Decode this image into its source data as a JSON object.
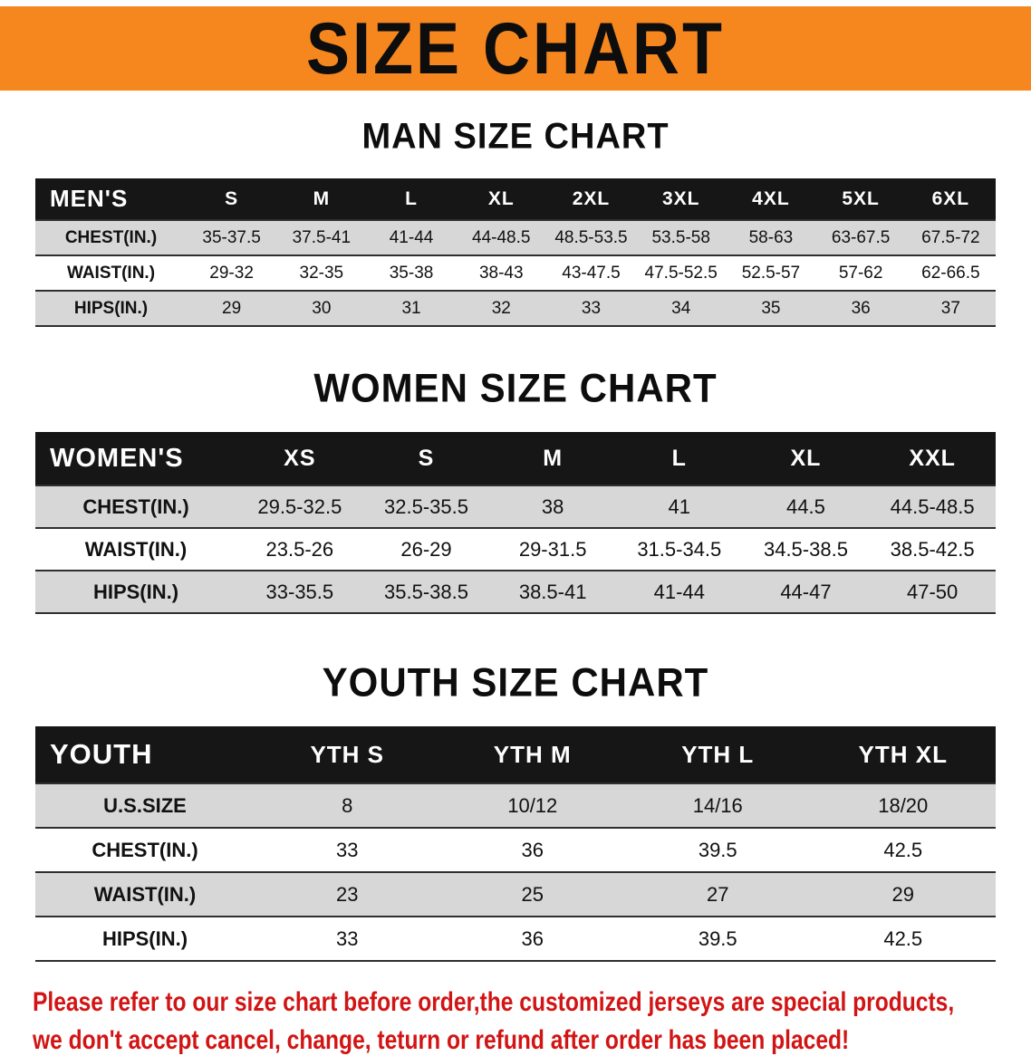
{
  "banner": {
    "title": "SIZE CHART",
    "bg_color": "#f6871f"
  },
  "chart_data": [
    {
      "type": "table",
      "title": "MAN SIZE CHART",
      "columns": [
        "MEN'S",
        "S",
        "M",
        "L",
        "XL",
        "2XL",
        "3XL",
        "4XL",
        "5XL",
        "6XL"
      ],
      "rows": [
        [
          "CHEST(IN.)",
          "35-37.5",
          "37.5-41",
          "41-44",
          "44-48.5",
          "48.5-53.5",
          "53.5-58",
          "58-63",
          "63-67.5",
          "67.5-72"
        ],
        [
          "WAIST(IN.)",
          "29-32",
          "32-35",
          "35-38",
          "38-43",
          "43-47.5",
          "47.5-52.5",
          "52.5-57",
          "57-62",
          "62-66.5"
        ],
        [
          "HIPS(IN.)",
          "29",
          "30",
          "31",
          "32",
          "33",
          "34",
          "35",
          "36",
          "37"
        ]
      ]
    },
    {
      "type": "table",
      "title": "WOMEN SIZE CHART",
      "columns": [
        "WOMEN'S",
        "XS",
        "S",
        "M",
        "L",
        "XL",
        "XXL"
      ],
      "rows": [
        [
          "CHEST(IN.)",
          "29.5-32.5",
          "32.5-35.5",
          "38",
          "41",
          "44.5",
          "44.5-48.5"
        ],
        [
          "WAIST(IN.)",
          "23.5-26",
          "26-29",
          "29-31.5",
          "31.5-34.5",
          "34.5-38.5",
          "38.5-42.5"
        ],
        [
          "HIPS(IN.)",
          "33-35.5",
          "35.5-38.5",
          "38.5-41",
          "41-44",
          "44-47",
          "47-50"
        ]
      ]
    },
    {
      "type": "table",
      "title": "YOUTH SIZE CHART",
      "columns": [
        "YOUTH",
        "YTH S",
        "YTH M",
        "YTH L",
        "YTH XL"
      ],
      "rows": [
        [
          "U.S.SIZE",
          "8",
          "10/12",
          "14/16",
          "18/20"
        ],
        [
          "CHEST(IN.)",
          "33",
          "36",
          "39.5",
          "42.5"
        ],
        [
          "WAIST(IN.)",
          "23",
          "25",
          "27",
          "29"
        ],
        [
          "HIPS(IN.)",
          "33",
          "36",
          "39.5",
          "42.5"
        ]
      ]
    }
  ],
  "disclaimer": {
    "line1": "Please refer to our size chart before order,the customized jerseys are special products,",
    "line2": "we don't accept cancel, change, teturn or refund after order has been placed!",
    "color": "#d21414"
  },
  "colors": {
    "banner_bg": "#f6871f",
    "table_header_bg": "#161616",
    "table_header_text": "#ffffff",
    "row_alt_bg": "#d7d7d7",
    "row_bg": "#ffffff",
    "text": "#111111"
  }
}
